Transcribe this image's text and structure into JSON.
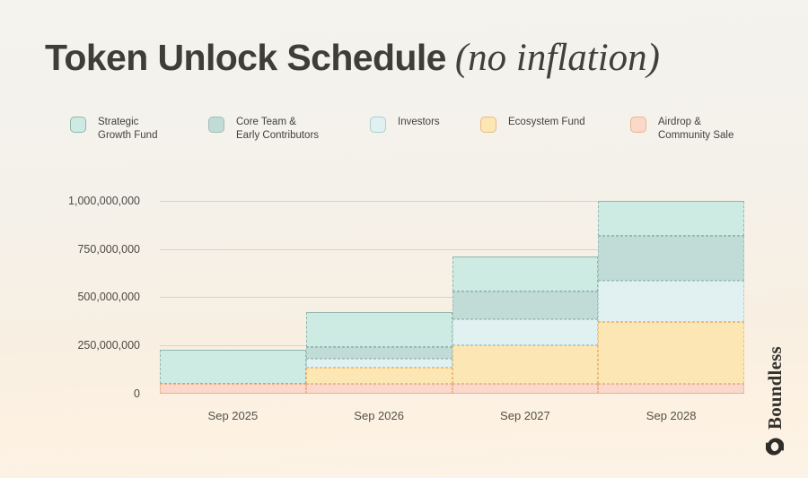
{
  "header": {
    "title": "Token Unlock Schedule",
    "title_suffix": "(no inflation)"
  },
  "brand": {
    "name": "Boundless"
  },
  "chart_data": {
    "type": "area",
    "variant": "stacked-step",
    "title": "Token Unlock Schedule (no inflation)",
    "xlabel": "",
    "ylabel": "",
    "grid": "horizontal",
    "legend_position": "top",
    "categories": [
      "Sep 2025",
      "Sep 2026",
      "Sep 2027",
      "Sep 2028"
    ],
    "series": [
      {
        "id": "strategic-growth-fund",
        "name": "Strategic Growth Fund",
        "label": "Strategic\nGrowth Fund",
        "color": "#cdeae3",
        "border": "#8fb7ae",
        "values": [
          176000000,
          180000000,
          180000000,
          180000000
        ]
      },
      {
        "id": "core-team-early-contributors",
        "name": "Core Team & Early Contributors",
        "label": "Core Team &\nEarly Contributors",
        "color": "#c1dcd6",
        "border": "#9dbfb8",
        "values": [
          0,
          60000000,
          148000000,
          235000000
        ]
      },
      {
        "id": "investors",
        "name": "Investors",
        "label": "Investors",
        "color": "#e1f0f0",
        "border": "#abcfcf",
        "values": [
          0,
          45000000,
          135000000,
          215000000
        ]
      },
      {
        "id": "ecosystem-fund",
        "name": "Ecosystem Fund",
        "label": "Ecosystem Fund",
        "color": "#fce7b4",
        "border": "#e9bd7d",
        "values": [
          0,
          85000000,
          198000000,
          320000000
        ]
      },
      {
        "id": "airdrop-community-sale",
        "name": "Airdrop & Community Sale",
        "label": "Airdrop &\nCommunity Sale",
        "color": "#fad8cc",
        "border": "#edb387",
        "values": [
          50000000,
          50000000,
          50000000,
          50000000
        ]
      }
    ],
    "totals_by_category": [
      226000000,
      420000000,
      711000000,
      1000000000
    ],
    "y_ticks": [
      "1,000,000,000",
      "750,000,000",
      "500,000,000",
      "250,000,000",
      "0"
    ],
    "y_tick_values": [
      1000000000,
      750000000,
      500000000,
      250000000,
      0
    ],
    "ylim": [
      0,
      1000000000
    ]
  }
}
